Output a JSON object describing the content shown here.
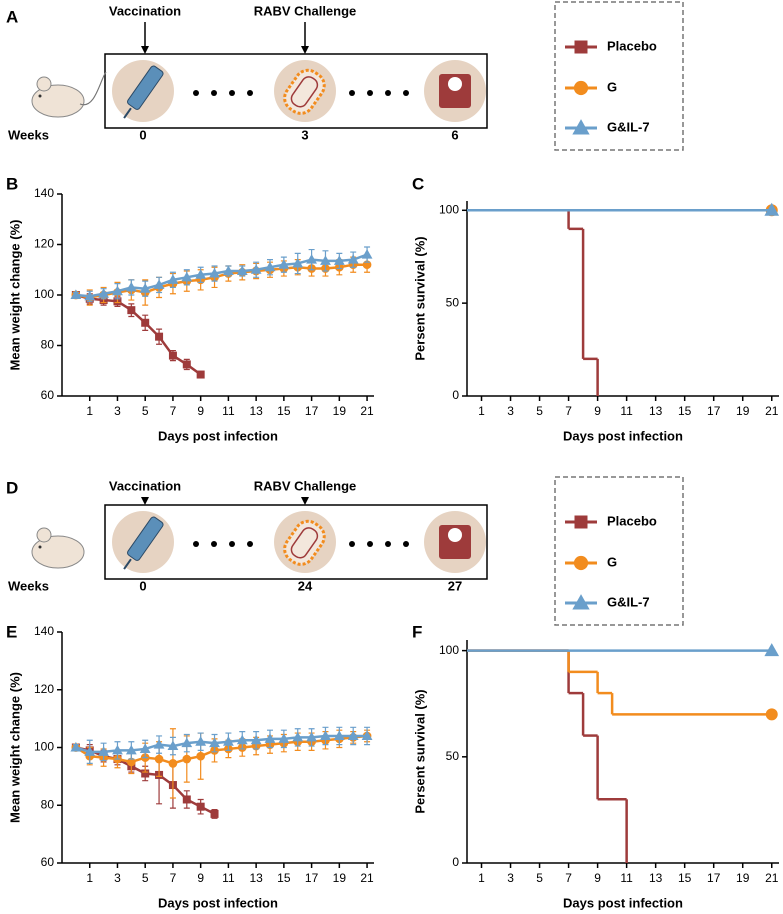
{
  "schematics": [
    {
      "panel": "A",
      "events": [
        "Vaccination",
        "RABV Challenge"
      ],
      "weeks_label": "Weeks",
      "weeks": [
        0,
        3,
        6
      ]
    },
    {
      "panel": "D",
      "events": [
        "Vaccination",
        "RABV Challenge"
      ],
      "weeks_label": "Weeks",
      "weeks": [
        0,
        24,
        27
      ]
    }
  ],
  "chart_data": [
    {
      "panel": "B",
      "type": "line",
      "xlabel": "Days post infection",
      "ylabel": "Mean weight change (%)",
      "xlim": [
        -1,
        21.5
      ],
      "xticks": [
        1,
        3,
        5,
        7,
        9,
        11,
        13,
        15,
        17,
        19,
        21
      ],
      "ylim": [
        60,
        140
      ],
      "yticks": [
        60,
        80,
        100,
        120,
        140
      ],
      "series": [
        {
          "name": "Placebo",
          "color": "#9e3b3b",
          "marker": "square",
          "x": [
            0,
            1,
            2,
            3,
            4,
            5,
            6,
            7,
            8,
            9
          ],
          "values": [
            100,
            98.5,
            98,
            97.5,
            94,
            89,
            83.5,
            76,
            72.5,
            68.5
          ],
          "errors": [
            1,
            2,
            2,
            2,
            2.5,
            3,
            3,
            2,
            2,
            0.5
          ]
        },
        {
          "name": "G",
          "color": "#f28c1e",
          "marker": "circle",
          "x": [
            0,
            1,
            2,
            3,
            4,
            5,
            6,
            7,
            8,
            9,
            10,
            11,
            12,
            13,
            14,
            15,
            16,
            17,
            18,
            19,
            20,
            21
          ],
          "values": [
            100,
            99,
            100,
            101,
            102,
            101,
            103,
            104.5,
            105.5,
            106,
            107,
            108.5,
            109,
            109.5,
            110,
            110.5,
            111,
            110.5,
            110.5,
            111,
            112,
            112
          ],
          "errors": [
            1,
            3,
            3,
            4,
            4,
            5,
            4,
            4,
            4,
            4,
            4,
            3,
            3,
            3,
            3,
            3,
            3,
            3,
            3,
            3,
            3,
            3
          ]
        },
        {
          "name": "G&IL-7",
          "color": "#6a9fcb",
          "marker": "triangle",
          "x": [
            0,
            1,
            2,
            3,
            4,
            5,
            6,
            7,
            8,
            9,
            10,
            11,
            12,
            13,
            14,
            15,
            16,
            17,
            18,
            19,
            20,
            21
          ],
          "values": [
            100,
            99.5,
            100.5,
            101.5,
            103,
            102.5,
            104,
            106,
            107,
            108,
            108.5,
            109.5,
            109.5,
            110,
            111,
            112,
            112.5,
            114,
            113.5,
            113.5,
            114,
            116
          ],
          "errors": [
            1,
            2,
            2,
            3,
            3,
            3,
            3,
            3,
            3,
            3,
            3,
            2,
            2,
            3,
            3,
            3,
            4,
            4,
            4,
            3,
            3,
            3
          ]
        }
      ]
    },
    {
      "panel": "C",
      "type": "step",
      "xlabel": "Days post infection",
      "ylabel": "Persent survival (%)",
      "xlim": [
        0,
        21.5
      ],
      "xticks": [
        1,
        3,
        5,
        7,
        9,
        11,
        13,
        15,
        17,
        19,
        21
      ],
      "ylim": [
        0,
        105
      ],
      "yticks": [
        0,
        50,
        100
      ],
      "series": [
        {
          "name": "Placebo",
          "color": "#9e3b3b",
          "marker": "square",
          "x": [
            0,
            7,
            8,
            9
          ],
          "values": [
            100,
            90,
            20,
            0
          ]
        },
        {
          "name": "G",
          "color": "#f28c1e",
          "marker": "circle",
          "x": [
            0,
            21
          ],
          "values": [
            100,
            100
          ]
        },
        {
          "name": "G&IL-7",
          "color": "#6a9fcb",
          "marker": "triangle",
          "x": [
            0,
            21
          ],
          "values": [
            100,
            100
          ]
        }
      ]
    },
    {
      "panel": "E",
      "type": "line",
      "xlabel": "Days post infection",
      "ylabel": "Mean weight change (%)",
      "xlim": [
        -1,
        21.5
      ],
      "xticks": [
        1,
        3,
        5,
        7,
        9,
        11,
        13,
        15,
        17,
        19,
        21
      ],
      "ylim": [
        60,
        140
      ],
      "yticks": [
        60,
        80,
        100,
        120,
        140
      ],
      "series": [
        {
          "name": "Placebo",
          "color": "#9e3b3b",
          "marker": "square",
          "x": [
            0,
            1,
            2,
            3,
            4,
            5,
            6,
            7,
            8,
            9,
            10
          ],
          "values": [
            100,
            99,
            97,
            96,
            93.5,
            91,
            90.5,
            87,
            82,
            79.5,
            77
          ],
          "errors": [
            1,
            2,
            2,
            2,
            2,
            2.5,
            10,
            8,
            3,
            2.5,
            1.5
          ]
        },
        {
          "name": "G",
          "color": "#f28c1e",
          "marker": "circle",
          "x": [
            0,
            1,
            2,
            3,
            4,
            5,
            6,
            7,
            8,
            9,
            10,
            11,
            12,
            13,
            14,
            15,
            16,
            17,
            18,
            19,
            20,
            21
          ],
          "values": [
            100,
            97,
            96.5,
            96,
            95,
            96.5,
            96,
            94.5,
            96,
            97,
            99,
            99.5,
            100,
            100.5,
            101,
            101.5,
            102,
            102,
            102.5,
            103,
            103.5,
            104
          ],
          "errors": [
            1,
            3,
            3,
            3,
            4,
            5,
            6,
            12,
            8,
            8,
            4,
            3,
            3,
            3,
            3,
            3,
            3,
            3,
            3,
            3,
            2,
            2
          ]
        },
        {
          "name": "G&IL-7",
          "color": "#6a9fcb",
          "marker": "triangle",
          "x": [
            0,
            1,
            2,
            3,
            4,
            5,
            6,
            7,
            8,
            9,
            10,
            11,
            12,
            13,
            14,
            15,
            16,
            17,
            18,
            19,
            20,
            21
          ],
          "values": [
            100,
            98.5,
            98.5,
            99,
            99,
            99.5,
            101,
            100.5,
            101.5,
            102,
            101.5,
            102,
            102.5,
            102.5,
            103,
            103,
            103.5,
            103.5,
            104,
            104,
            104,
            104
          ],
          "errors": [
            1,
            4,
            3,
            3,
            3,
            3,
            3,
            3,
            3,
            3,
            3,
            3,
            3,
            3,
            3,
            3,
            3,
            3,
            3,
            3,
            3,
            3
          ]
        }
      ]
    },
    {
      "panel": "F",
      "type": "step",
      "xlabel": "Days post infection",
      "ylabel": "Persent survival (%)",
      "xlim": [
        0,
        21.5
      ],
      "xticks": [
        1,
        3,
        5,
        7,
        9,
        11,
        13,
        15,
        17,
        19,
        21
      ],
      "ylim": [
        0,
        105
      ],
      "yticks": [
        0,
        50,
        100
      ],
      "series": [
        {
          "name": "Placebo",
          "color": "#9e3b3b",
          "marker": "square",
          "x": [
            0,
            7,
            8,
            9,
            11
          ],
          "values": [
            100,
            80,
            60,
            30,
            0
          ]
        },
        {
          "name": "G",
          "color": "#f28c1e",
          "marker": "circle",
          "x": [
            0,
            7,
            9,
            10,
            21
          ],
          "values": [
            100,
            90,
            80,
            70,
            70
          ]
        },
        {
          "name": "G&IL-7",
          "color": "#6a9fcb",
          "marker": "triangle",
          "x": [
            0,
            21
          ],
          "values": [
            100,
            100
          ]
        }
      ]
    }
  ]
}
